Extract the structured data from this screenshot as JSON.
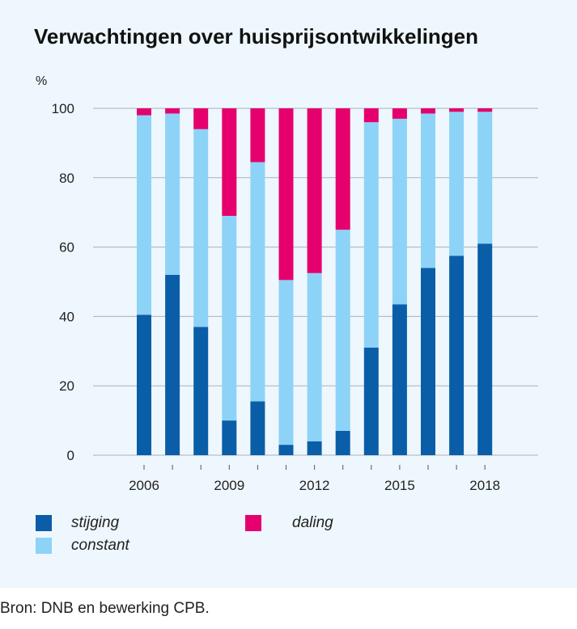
{
  "chart_data": {
    "type": "bar",
    "stacked": true,
    "title": "Verwachtingen over huisprijsontwikkelingen",
    "ylabel": "%",
    "xlabel": "",
    "ylim": [
      0,
      100
    ],
    "yticks": [
      0,
      20,
      40,
      60,
      80,
      100
    ],
    "categories": [
      "2006",
      "2007",
      "2008",
      "2009",
      "2010",
      "2011",
      "2012",
      "2013",
      "2014",
      "2015",
      "2016",
      "2017",
      "2018"
    ],
    "xtick_labels": [
      "2006",
      "",
      "",
      "2009",
      "",
      "",
      "2012",
      "",
      "",
      "2015",
      "",
      "",
      "2018"
    ],
    "grid": "horizontal",
    "series": [
      {
        "name": "stijging",
        "color": "#0a5ea8",
        "values": [
          40.5,
          52,
          37,
          10,
          15.5,
          3,
          4,
          7,
          31,
          43.5,
          54,
          57.5,
          61
        ]
      },
      {
        "name": "constant",
        "color": "#8dd3f7",
        "values": [
          57.5,
          46.5,
          57,
          59,
          69,
          47.5,
          48.5,
          58,
          65,
          53.5,
          44.5,
          41.5,
          38
        ]
      },
      {
        "name": "daling",
        "color": "#e5006e",
        "values": [
          2,
          1.5,
          6,
          31,
          15.5,
          49.5,
          47.5,
          35,
          4,
          3,
          1.5,
          1,
          1
        ]
      }
    ],
    "legend": [
      {
        "name": "stijging",
        "color": "#0a5ea8"
      },
      {
        "name": "constant",
        "color": "#8dd3f7"
      },
      {
        "name": "daling",
        "color": "#e5006e"
      }
    ]
  },
  "source": "Bron: DNB en bewerking CPB."
}
